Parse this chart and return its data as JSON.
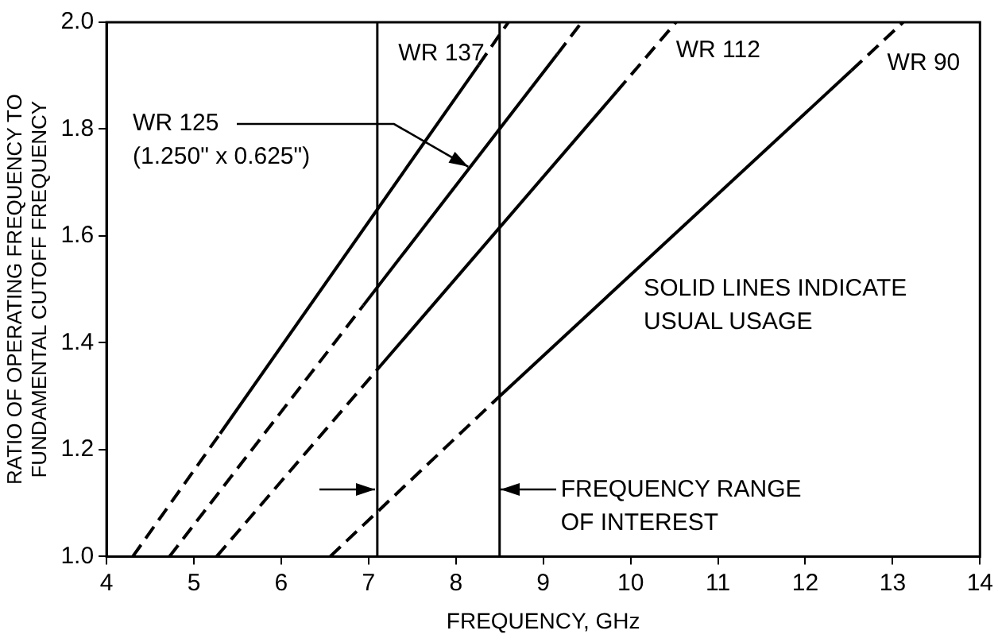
{
  "chart_data": {
    "type": "line",
    "xlabel": "FREQUENCY, GHz",
    "ylabel": "RATIO OF OPERATING FREQUENCY TO\nFUNDAMENTAL CUTOFF FREQUENCY",
    "xlim": [
      4,
      14
    ],
    "xticks": [
      4,
      5,
      6,
      7,
      8,
      9,
      10,
      11,
      12,
      13,
      14
    ],
    "ylim": [
      1,
      2
    ],
    "yticks": [
      {
        "value": 1,
        "label": "1.0"
      },
      {
        "value": 1.2,
        "label": "1.2"
      },
      {
        "value": 1.4,
        "label": "1.4"
      },
      {
        "value": 1.6,
        "label": "1.6"
      },
      {
        "value": 1.8,
        "label": "1.8"
      },
      {
        "value": 2,
        "label": "2.0"
      }
    ],
    "grid": false,
    "legend": false,
    "marker": "none",
    "series": [
      {
        "color": "#000000",
        "line_style": "dashed",
        "x": [
          4.3,
          5.3
        ],
        "values": [
          1.0,
          1.23
        ]
      },
      {
        "color": "#000000",
        "line_style": "solid",
        "x": [
          5.3,
          8.26
        ],
        "values": [
          1.23,
          1.92
        ]
      },
      {
        "color": "#000000",
        "line_style": "dashed",
        "x": [
          8.26,
          8.6
        ],
        "values": [
          1.92,
          2.0
        ]
      },
      {
        "color": "#000000",
        "line_style": "dashed",
        "x": [
          4.72,
          6.94
        ],
        "values": [
          1.0,
          1.47
        ]
      },
      {
        "color": "#000000",
        "line_style": "solid",
        "x": [
          6.94,
          9.16
        ],
        "values": [
          1.47,
          1.94
        ]
      },
      {
        "color": "#000000",
        "line_style": "dashed",
        "x": [
          9.16,
          9.44
        ],
        "values": [
          1.94,
          2.0
        ]
      },
      {
        "color": "#000000",
        "line_style": "dashed",
        "x": [
          5.26,
          7.1
        ],
        "values": [
          1.0,
          1.35
        ]
      },
      {
        "color": "#000000",
        "line_style": "solid",
        "x": [
          7.1,
          9.84
        ],
        "values": [
          1.35,
          1.87
        ]
      },
      {
        "color": "#000000",
        "line_style": "dashed",
        "x": [
          9.84,
          10.52
        ],
        "values": [
          1.87,
          2.0
        ]
      },
      {
        "color": "#000000",
        "line_style": "dashed",
        "x": [
          6.56,
          8.5
        ],
        "values": [
          1.0,
          1.3
        ]
      },
      {
        "color": "#000000",
        "line_style": "solid",
        "x": [
          8.5,
          12.53
        ],
        "values": [
          1.3,
          1.91
        ]
      },
      {
        "color": "#000000",
        "line_style": "dashed",
        "x": [
          12.53,
          13.12
        ],
        "values": [
          1.91,
          2.0
        ]
      }
    ],
    "ref_lines": [
      {
        "axis": "x",
        "value": 7.1,
        "color": "#000000"
      },
      {
        "axis": "x",
        "value": 8.5,
        "color": "#000000"
      }
    ],
    "annotations": [
      {
        "text": "WR 137",
        "x": 8.6,
        "y": 2.0
      },
      {
        "text": "WR 125\n(1.250\" x 0.625\")",
        "x": 8.15,
        "y": 1.73
      },
      {
        "text": "WR 112",
        "x": 10.52,
        "y": 2.0
      },
      {
        "text": "WR 90",
        "x": 13.12,
        "y": 2.0
      },
      "SOLID LINES INDICATE\nUSUAL USAGE",
      "FREQUENCY RANGE\nOF INTEREST"
    ]
  }
}
